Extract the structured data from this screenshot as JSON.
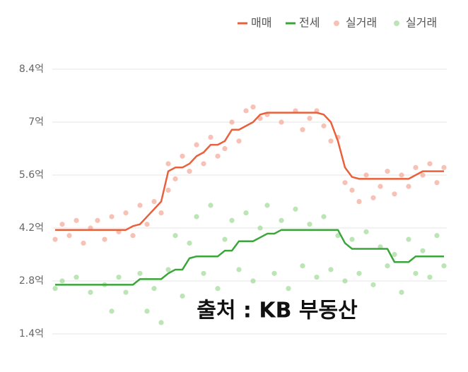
{
  "chart_data": {
    "type": "line",
    "categories": [
      null,
      null,
      null,
      null,
      null,
      null,
      null,
      null,
      null,
      null,
      null,
      null,
      null,
      null,
      null,
      null,
      null,
      null,
      null,
      null,
      null,
      null,
      null,
      null,
      null,
      null,
      null,
      null,
      null,
      null,
      null,
      null,
      null,
      null,
      null,
      null,
      null,
      null,
      null,
      null,
      null,
      null,
      null,
      null,
      null,
      null,
      null,
      null,
      null,
      null,
      null,
      null,
      null,
      null,
      null,
      null
    ],
    "xlim": [
      0,
      55
    ],
    "ylim": [
      0.4,
      8.6
    ],
    "yticks": [
      {
        "value": 1.4,
        "label": "1.4억"
      },
      {
        "value": 2.8,
        "label": "2.8억"
      },
      {
        "value": 4.2,
        "label": "4.2억"
      },
      {
        "value": 5.6,
        "label": "5.6억"
      },
      {
        "value": 7,
        "label": "7억"
      },
      {
        "value": 8.4,
        "label": "8.4억"
      }
    ],
    "grid": true,
    "legend": "top-right",
    "annotation": "출처 : KB 부동산",
    "series": [
      {
        "name": "매매",
        "type": "line",
        "color": "#e8603c",
        "values": [
          4.15,
          4.15,
          4.15,
          4.15,
          4.15,
          4.15,
          4.15,
          4.15,
          4.15,
          4.15,
          4.15,
          4.25,
          4.3,
          4.5,
          4.7,
          4.9,
          5.7,
          5.8,
          5.8,
          5.9,
          6.1,
          6.2,
          6.4,
          6.4,
          6.5,
          6.8,
          6.8,
          6.9,
          7.0,
          7.2,
          7.25,
          7.25,
          7.25,
          7.25,
          7.25,
          7.25,
          7.25,
          7.25,
          7.2,
          7.0,
          6.5,
          5.8,
          5.55,
          5.5,
          5.5,
          5.5,
          5.5,
          5.5,
          5.5,
          5.5,
          5.5,
          5.6,
          5.7,
          5.7,
          5.7,
          5.7
        ]
      },
      {
        "name": "전세",
        "type": "line",
        "color": "#3aa63a",
        "values": [
          2.7,
          2.7,
          2.7,
          2.7,
          2.7,
          2.7,
          2.7,
          2.7,
          2.7,
          2.7,
          2.7,
          2.7,
          2.85,
          2.85,
          2.85,
          2.85,
          3.0,
          3.1,
          3.1,
          3.4,
          3.45,
          3.45,
          3.45,
          3.45,
          3.6,
          3.6,
          3.85,
          3.85,
          3.85,
          3.95,
          4.05,
          4.05,
          4.15,
          4.15,
          4.15,
          4.15,
          4.15,
          4.15,
          4.15,
          4.15,
          4.15,
          3.8,
          3.65,
          3.65,
          3.65,
          3.65,
          3.65,
          3.65,
          3.3,
          3.3,
          3.3,
          3.45,
          3.45,
          3.45,
          3.45,
          3.45
        ]
      },
      {
        "name": "실거래",
        "type": "scatter",
        "color": "#f19a84",
        "x": [
          0,
          1,
          2,
          3,
          4,
          5,
          6,
          7,
          8,
          9,
          10,
          11,
          12,
          13,
          14,
          15,
          16,
          16,
          17,
          18,
          19,
          20,
          21,
          22,
          23,
          24,
          25,
          26,
          27,
          28,
          29,
          30,
          32,
          34,
          35,
          36,
          37,
          38,
          39,
          40,
          41,
          42,
          43,
          44,
          45,
          46,
          47,
          48,
          49,
          50,
          51,
          52,
          53,
          54,
          55
        ],
        "values": [
          3.9,
          4.3,
          4.0,
          4.4,
          3.8,
          4.2,
          4.4,
          3.9,
          4.5,
          4.1,
          4.6,
          4.0,
          4.8,
          4.3,
          4.9,
          4.6,
          5.9,
          5.2,
          5.5,
          6.1,
          5.7,
          6.4,
          5.9,
          6.6,
          6.1,
          6.3,
          7.0,
          6.5,
          7.3,
          7.4,
          7.1,
          7.2,
          7.0,
          7.3,
          6.8,
          7.1,
          7.3,
          6.9,
          6.5,
          6.6,
          5.4,
          5.2,
          4.9,
          5.6,
          5.0,
          5.3,
          5.7,
          5.1,
          5.6,
          5.3,
          5.8,
          5.6,
          5.9,
          5.4,
          5.8
        ]
      },
      {
        "name": "실거래",
        "type": "scatter",
        "color": "#8fd483",
        "x": [
          0,
          1,
          3,
          5,
          7,
          8,
          9,
          10,
          12,
          13,
          14,
          15,
          16,
          17,
          18,
          19,
          20,
          21,
          22,
          23,
          24,
          25,
          26,
          27,
          28,
          29,
          30,
          31,
          32,
          33,
          34,
          35,
          36,
          37,
          38,
          39,
          40,
          41,
          42,
          43,
          44,
          45,
          46,
          47,
          48,
          49,
          50,
          51,
          52,
          53,
          54,
          55
        ],
        "values": [
          2.6,
          2.8,
          2.9,
          2.5,
          2.7,
          2.0,
          2.9,
          2.5,
          3.0,
          2.0,
          2.6,
          1.7,
          3.1,
          4.0,
          2.4,
          3.8,
          4.5,
          3.0,
          4.8,
          2.6,
          3.9,
          4.4,
          3.1,
          4.6,
          2.8,
          4.2,
          4.8,
          3.0,
          4.4,
          2.6,
          4.7,
          3.2,
          4.3,
          2.9,
          4.5,
          3.1,
          4.0,
          2.8,
          3.9,
          3.0,
          4.1,
          2.7,
          3.7,
          3.2,
          3.5,
          2.5,
          3.9,
          3.0,
          3.6,
          2.9,
          4.0,
          3.2
        ]
      }
    ]
  }
}
